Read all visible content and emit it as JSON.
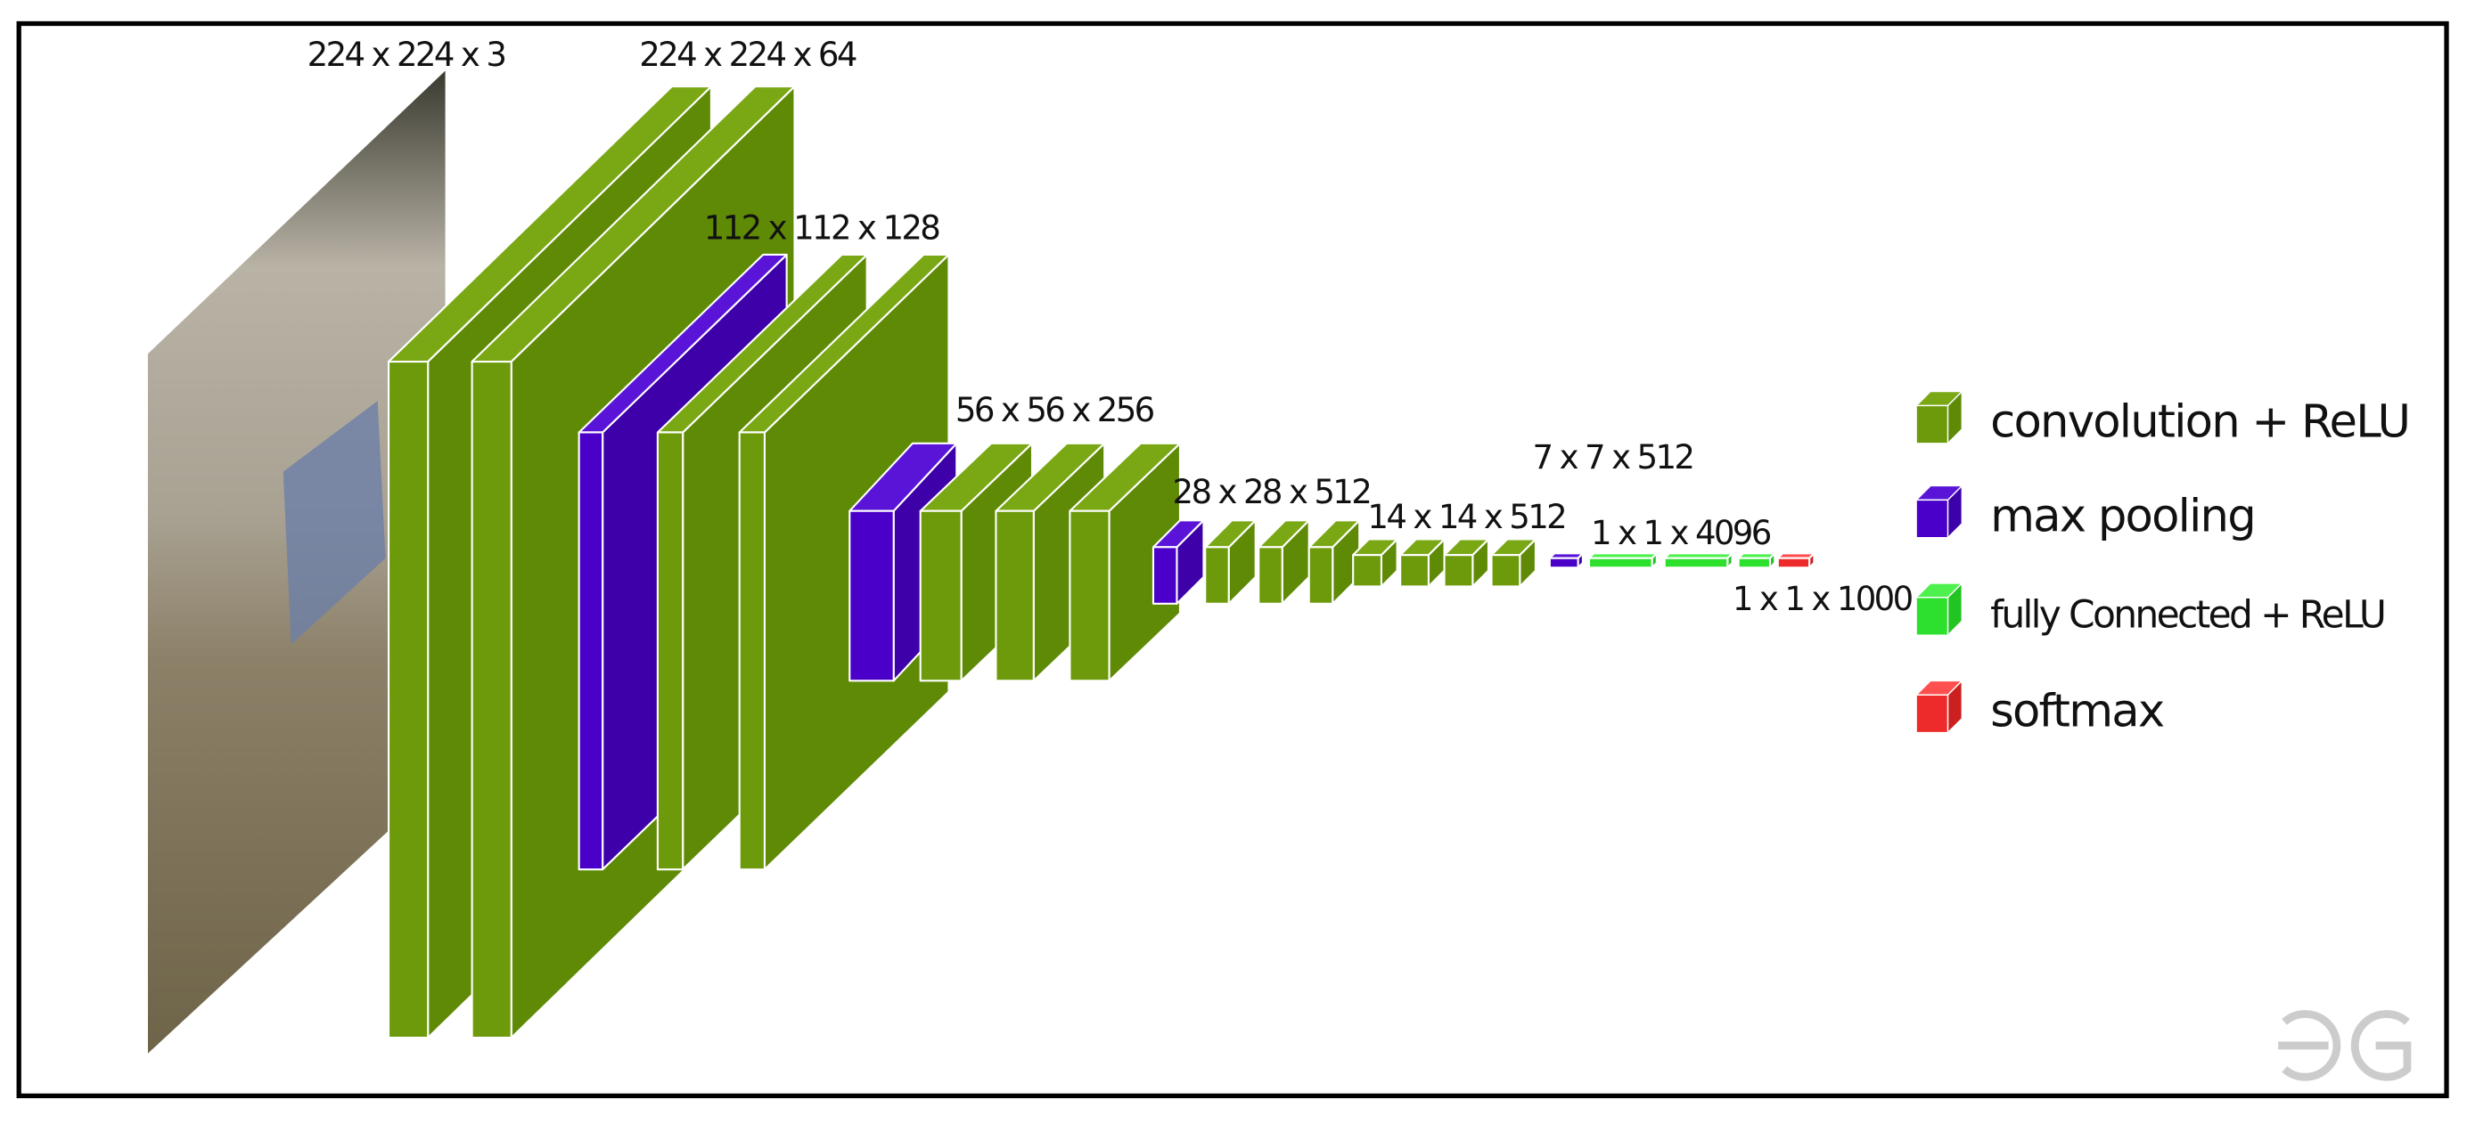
{
  "layers": [
    {
      "label": "224 x 224 x 3"
    },
    {
      "label": "224 x 224 x 64"
    },
    {
      "label": "112 x 112 x 128"
    },
    {
      "label": "56 x 56 x 256"
    },
    {
      "label": "28 x 28 x 512"
    },
    {
      "label": "14 x 14 x 512"
    },
    {
      "label": "7 x 7 x 512"
    },
    {
      "label": "1 x 1 x 4096"
    },
    {
      "label": "1 x 1 x 1000"
    }
  ],
  "legend": [
    {
      "label": "convolution + ReLU"
    },
    {
      "label": "max pooling"
    },
    {
      "label": "fully Connected + ReLU"
    },
    {
      "label": "softmax"
    }
  ]
}
